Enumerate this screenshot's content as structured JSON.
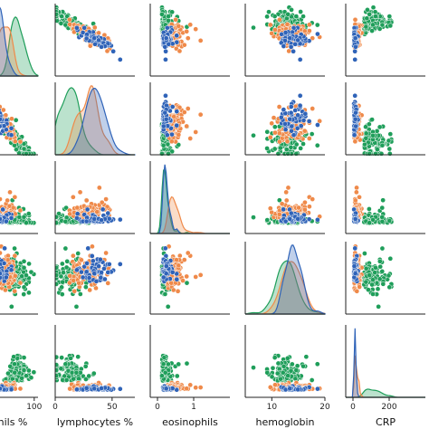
{
  "chart_data": {
    "type": "scatter",
    "title": "",
    "variables": [
      "neutrophils %",
      "lymphocytes %",
      "eosinophils",
      "hemoglobin",
      "CRP"
    ],
    "x_axis_labels_visible": [
      "hils %",
      "lymphocytes %",
      "eosinophils",
      "hemoglobin",
      "CRP"
    ],
    "ranges": {
      "neutrophils %": [
        0,
        105
      ],
      "lymphocytes %": [
        0,
        70
      ],
      "eosinophils": [
        -0.2,
        2.0
      ],
      "hemoglobin": [
        5,
        20
      ],
      "CRP": [
        -40,
        400
      ]
    },
    "x_ticks": {
      "neutrophils %": [
        100
      ],
      "lymphocytes %": [
        0,
        50
      ],
      "eosinophils": [
        0,
        1
      ],
      "hemoglobin": [
        10,
        20
      ],
      "CRP": [
        0,
        200
      ]
    },
    "diagonal": "kde",
    "off_diagonal": "scatter",
    "series": [
      {
        "name": "",
        "color": "#1f9e5a"
      },
      {
        "name": "",
        "color": "#ef8a4a"
      },
      {
        "name": "",
        "color": "#2f63b8"
      }
    ],
    "distributions": {
      "green": {
        "neutrophils %": [
          78,
          10
        ],
        "lymphocytes %": [
          18,
          8
        ],
        "eosinophils": [
          0.12,
          0.1
        ],
        "hemoglobin": [
          12.8,
          1.8
        ],
        "CRP": [
          60,
          70
        ]
      },
      "orange": {
        "neutrophils %": [
          60,
          9
        ],
        "lymphocytes %": [
          30,
          6
        ],
        "eosinophils": [
          0.28,
          0.22
        ],
        "hemoglobin": [
          13.8,
          1.6
        ],
        "CRP": [
          8,
          15
        ]
      },
      "blue": {
        "neutrophils %": [
          52,
          7
        ],
        "lymphocytes %": [
          40,
          6
        ],
        "eosinophils": [
          0.15,
          0.12
        ],
        "hemoglobin": [
          14.2,
          1.4
        ],
        "CRP": [
          5,
          8
        ]
      }
    },
    "grid": false,
    "legend": "none"
  }
}
